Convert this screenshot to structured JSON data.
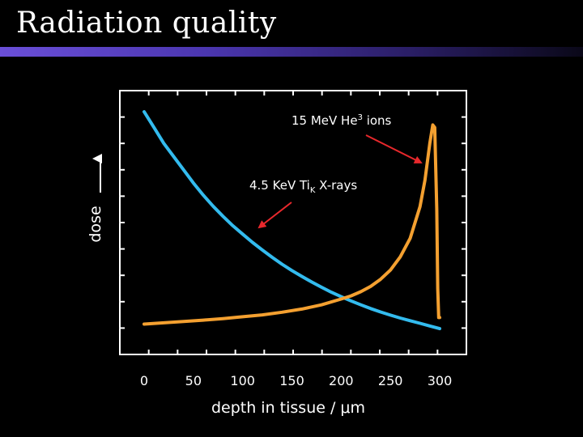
{
  "slide": {
    "title": "Radiation quality"
  },
  "chart_data": {
    "type": "line",
    "title": "",
    "xlabel": "depth in tissue / μm",
    "ylabel": "dose",
    "xlim": [
      0,
      300
    ],
    "x_ticks": [
      "0",
      "50",
      "100",
      "150",
      "200",
      "250",
      "300"
    ],
    "y_ticks_labeled": false,
    "grid": false,
    "series": [
      {
        "name": "4.5 KeV TiK X-rays",
        "color": "#33bbee",
        "x": [
          0,
          10,
          20,
          30,
          40,
          50,
          60,
          70,
          80,
          90,
          100,
          110,
          120,
          130,
          140,
          150,
          160,
          170,
          180,
          190,
          200,
          210,
          220,
          230,
          240,
          250,
          260,
          270,
          280,
          290,
          300
        ],
        "y": [
          0.92,
          0.86,
          0.8,
          0.75,
          0.7,
          0.65,
          0.604,
          0.562,
          0.524,
          0.488,
          0.456,
          0.425,
          0.396,
          0.368,
          0.342,
          0.318,
          0.296,
          0.275,
          0.255,
          0.236,
          0.219,
          0.203,
          0.188,
          0.174,
          0.161,
          0.149,
          0.138,
          0.128,
          0.118,
          0.108,
          0.098
        ]
      },
      {
        "name": "15 MeV He3 ions",
        "color": "#f4a030",
        "x": [
          0,
          20,
          40,
          60,
          80,
          100,
          120,
          140,
          160,
          180,
          200,
          210,
          220,
          230,
          240,
          250,
          260,
          270,
          280,
          285,
          290,
          293,
          295,
          297,
          298,
          299,
          300
        ],
        "y": [
          0.115,
          0.12,
          0.125,
          0.13,
          0.136,
          0.143,
          0.15,
          0.16,
          0.172,
          0.188,
          0.21,
          0.222,
          0.238,
          0.258,
          0.285,
          0.32,
          0.37,
          0.44,
          0.56,
          0.66,
          0.8,
          0.87,
          0.86,
          0.55,
          0.25,
          0.14,
          0.14
        ]
      }
    ],
    "annotations": [
      {
        "label_main": "15 MeV He",
        "label_sup": "3",
        "label_tail": " ions",
        "target": "15 MeV He3 ions"
      },
      {
        "label_main": "4.5 KeV Ti",
        "label_sub": "K",
        "label_tail": " X-rays",
        "target": "4.5 KeV TiK X-rays"
      }
    ],
    "annotation_arrow_color": "#e8282c",
    "dose_arrow_color": "#ffffff"
  }
}
